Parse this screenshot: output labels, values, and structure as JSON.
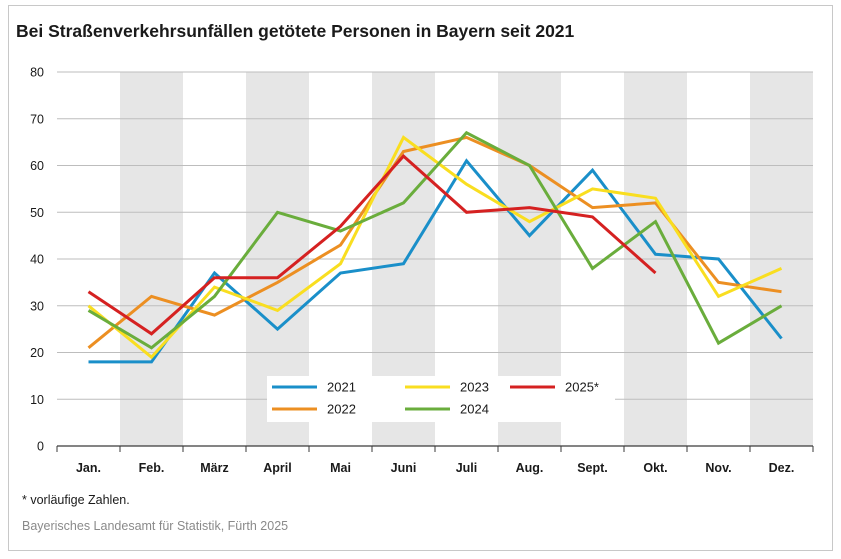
{
  "title": "Bei Straßenverkehrsunfällen getötete Personen in Bayern seit 2021",
  "footnote": "* vorläufige Zahlen.",
  "source": "Bayerisches Landesamt für Statistik, Fürth 2025",
  "chart_data": {
    "type": "line",
    "title": "Bei Straßenverkehrsunfällen getötete Personen in Bayern seit 2021",
    "categories": [
      "Jan.",
      "Feb.",
      "März",
      "April",
      "Mai",
      "Juni",
      "Juli",
      "Aug.",
      "Sept.",
      "Okt.",
      "Nov.",
      "Dez."
    ],
    "ylim": [
      0,
      80
    ],
    "yticks": [
      0,
      10,
      20,
      30,
      40,
      50,
      60,
      70,
      80
    ],
    "grid": true,
    "alternating_column_shading": true,
    "legend_placement": "bottom-center",
    "series": [
      {
        "name": "2021",
        "color": "#1a8fc9",
        "values": [
          18,
          18,
          37,
          25,
          37,
          39,
          61,
          45,
          59,
          41,
          40,
          23
        ]
      },
      {
        "name": "2022",
        "color": "#ec8f22",
        "values": [
          21,
          32,
          28,
          35,
          43,
          63,
          66,
          60,
          51,
          52,
          35,
          33
        ]
      },
      {
        "name": "2023",
        "color": "#f9de20",
        "values": [
          30,
          19,
          34,
          29,
          39,
          66,
          56,
          48,
          55,
          53,
          32,
          38
        ]
      },
      {
        "name": "2024",
        "color": "#6aad3c",
        "values": [
          29,
          21,
          32,
          50,
          46,
          52,
          67,
          60,
          38,
          48,
          22,
          30
        ]
      },
      {
        "name": "2025*",
        "color": "#d52121",
        "values": [
          33,
          24,
          36,
          36,
          47,
          62,
          50,
          51,
          49,
          37,
          null,
          null
        ]
      }
    ],
    "legend_order": [
      [
        0,
        2,
        4
      ],
      [
        1,
        3
      ]
    ]
  }
}
